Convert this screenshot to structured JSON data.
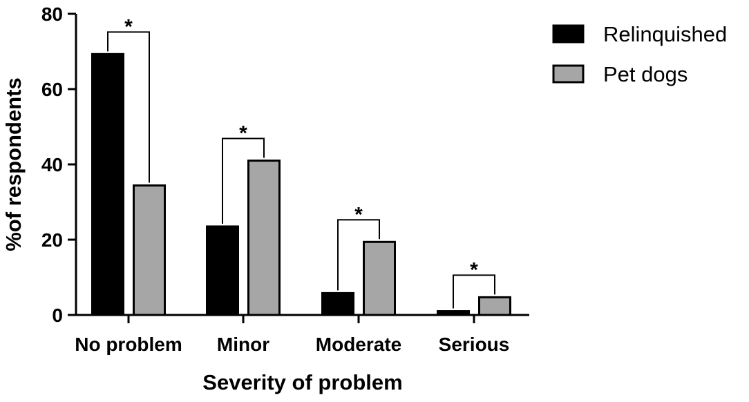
{
  "chart_data": {
    "type": "bar",
    "title": "",
    "xlabel": "Severity of problem",
    "ylabel": "%of respondents",
    "ylim": [
      0,
      80
    ],
    "yticks": [
      0,
      20,
      40,
      60,
      80
    ],
    "categories": [
      "No problem",
      "Minor",
      "Moderate",
      "Serious"
    ],
    "series": [
      {
        "name": "Relinquished",
        "values": [
          69.3,
          23.5,
          5.8,
          1.0
        ],
        "color": "#000000"
      },
      {
        "name": "Pet dogs",
        "values": [
          34.4,
          41.0,
          19.4,
          4.7
        ],
        "color": "#a6a6a6"
      }
    ],
    "significance": [
      "*",
      "*",
      "*",
      "*"
    ],
    "legend_position": "top-right",
    "grid": false
  }
}
